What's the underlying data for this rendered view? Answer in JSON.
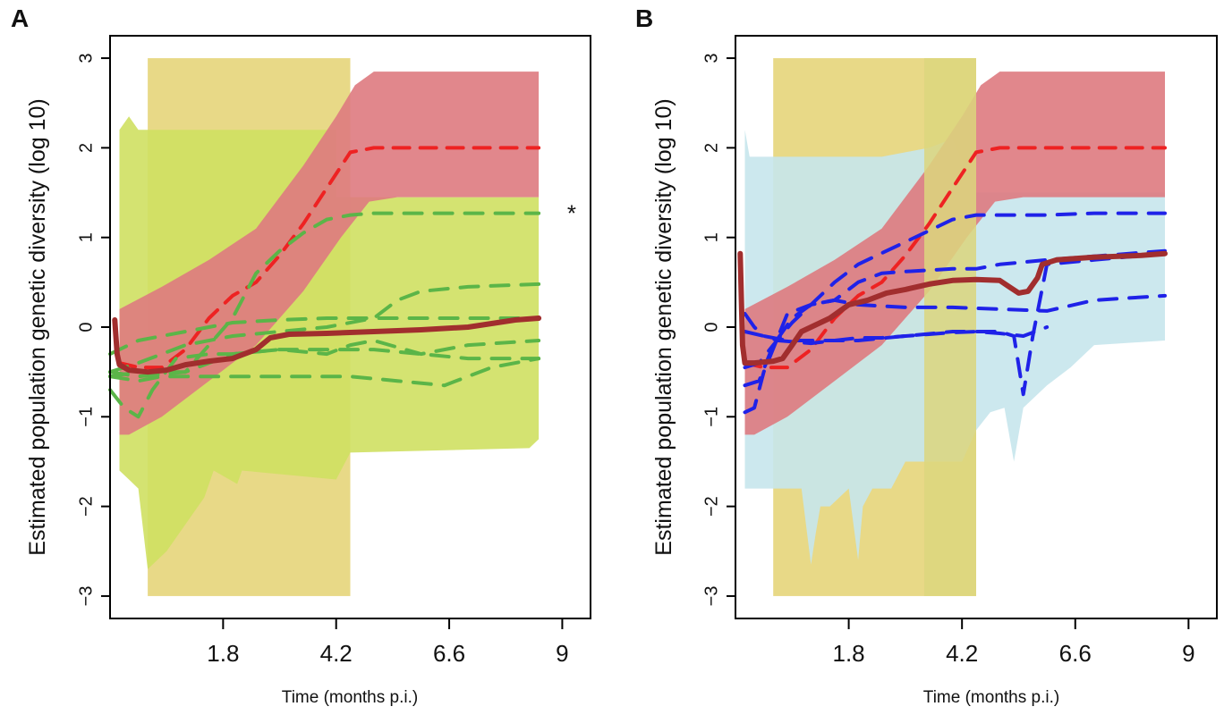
{
  "chart_data": [
    {
      "panel_label": "A",
      "type": "line",
      "xlabel": "Time (months p.i.)",
      "ylabel": "Estimated population genetic diversity (log 10)",
      "xlim": [
        -0.6,
        9.6
      ],
      "ylim": [
        -3.25,
        3.25
      ],
      "xticks": [
        "1.8",
        "4.2",
        "6.6",
        "9"
      ],
      "xtick_values": [
        1.8,
        4.2,
        6.6,
        9
      ],
      "yticks": [
        -3,
        -2,
        -1,
        0,
        1,
        2,
        3
      ],
      "grid": false,
      "colors": {
        "shade": "#e8d987",
        "band_red": "#de7a80",
        "band_second": "#cfe062",
        "median_red": "#ee2222",
        "others": "#5bb548",
        "mean": "#a12e2e"
      },
      "shaded_interval": {
        "x": [
          0.2,
          4.5
        ],
        "y": [
          -3,
          3
        ]
      },
      "annotation": {
        "text": "*",
        "x": 9.2,
        "y": 1.27
      },
      "second_band": {
        "upper": [
          [
            -0.4,
            2.2
          ],
          [
            -0.2,
            2.35
          ],
          [
            0.0,
            2.2
          ],
          [
            0.8,
            2.2
          ],
          [
            4.2,
            2.2
          ],
          [
            4.2,
            1.45
          ],
          [
            8.5,
            1.45
          ]
        ],
        "lower": [
          [
            8.5,
            -1.25
          ],
          [
            8.3,
            -1.35
          ],
          [
            4.5,
            -1.4
          ],
          [
            4.2,
            -1.7
          ],
          [
            2.2,
            -1.6
          ],
          [
            2.1,
            -1.75
          ],
          [
            1.6,
            -1.6
          ],
          [
            1.4,
            -1.9
          ],
          [
            0.6,
            -2.5
          ],
          [
            0.2,
            -2.7
          ],
          [
            0.0,
            -1.8
          ],
          [
            -0.2,
            -1.7
          ],
          [
            -0.4,
            -1.6
          ]
        ]
      },
      "red_band": {
        "upper": [
          [
            -0.4,
            0.2
          ],
          [
            0.5,
            0.45
          ],
          [
            1.5,
            0.75
          ],
          [
            2.5,
            1.1
          ],
          [
            3.5,
            1.8
          ],
          [
            4.2,
            2.35
          ],
          [
            4.6,
            2.7
          ],
          [
            5.0,
            2.85
          ],
          [
            8.5,
            2.85
          ]
        ],
        "lower": [
          [
            8.5,
            1.45
          ],
          [
            5.5,
            1.45
          ],
          [
            4.9,
            1.4
          ],
          [
            4.3,
            1.0
          ],
          [
            3.5,
            0.4
          ],
          [
            2.5,
            -0.2
          ],
          [
            1.5,
            -0.6
          ],
          [
            0.5,
            -1.0
          ],
          [
            -0.2,
            -1.2
          ],
          [
            -0.4,
            -1.2
          ]
        ]
      },
      "series": [
        {
          "role": "median_red",
          "dashed": true,
          "x": [
            -0.4,
            0.0,
            0.5,
            1.0,
            1.5,
            2.0,
            2.5,
            3.0,
            3.5,
            4.0,
            4.5,
            5.0,
            6.0,
            8.5
          ],
          "y": [
            -0.4,
            -0.45,
            -0.45,
            -0.25,
            0.1,
            0.35,
            0.5,
            0.8,
            1.15,
            1.55,
            1.95,
            2.0,
            2.0,
            2.0
          ]
        },
        {
          "role": "others",
          "dashed": true,
          "x": [
            -0.6,
            0.0,
            0.5,
            1.0,
            2.0,
            2.5,
            3.0,
            3.5,
            4.0,
            4.5,
            5.0,
            6.0,
            8.5
          ],
          "y": [
            -0.55,
            -0.5,
            -0.5,
            -0.5,
            0.1,
            0.6,
            0.85,
            1.05,
            1.2,
            1.25,
            1.27,
            1.27,
            1.27
          ]
        },
        {
          "role": "others",
          "dashed": true,
          "x": [
            -0.6,
            0.0,
            1.0,
            2.0,
            3.0,
            4.0,
            5.0,
            5.5,
            6.0,
            7.0,
            8.5
          ],
          "y": [
            -0.5,
            -0.4,
            -0.2,
            -0.1,
            -0.05,
            0.0,
            0.1,
            0.3,
            0.4,
            0.45,
            0.48
          ]
        },
        {
          "role": "others",
          "dashed": true,
          "x": [
            -0.6,
            0.0,
            1.0,
            2.0,
            3.0,
            4.0,
            5.0,
            6.0,
            7.0,
            8.5
          ],
          "y": [
            -0.3,
            -0.15,
            -0.05,
            0.05,
            0.08,
            0.1,
            0.1,
            0.1,
            0.1,
            0.1
          ]
        },
        {
          "role": "others",
          "dashed": true,
          "x": [
            -0.6,
            0.0,
            1.0,
            2.0,
            3.0,
            4.0,
            4.5,
            5.0,
            6.0,
            7.0,
            8.5
          ],
          "y": [
            -0.5,
            -0.55,
            -0.5,
            -0.3,
            -0.25,
            -0.3,
            -0.2,
            -0.15,
            -0.3,
            -0.2,
            -0.15
          ]
        },
        {
          "role": "others",
          "dashed": true,
          "x": [
            -0.6,
            0.0,
            0.5,
            1.5,
            2.5,
            3.5,
            4.5,
            5.5,
            6.5,
            7.5,
            8.5
          ],
          "y": [
            -0.55,
            -0.6,
            -0.55,
            -0.55,
            -0.55,
            -0.55,
            -0.55,
            -0.6,
            -0.65,
            -0.45,
            -0.35
          ]
        },
        {
          "role": "others",
          "dashed": true,
          "x": [
            -0.6,
            -0.3,
            0.0,
            0.3,
            0.8,
            1.5,
            2.0,
            3.0,
            4.0,
            5.0,
            6.0,
            7.0,
            8.5
          ],
          "y": [
            -0.7,
            -0.9,
            -1.0,
            -0.7,
            -0.35,
            -0.3,
            -0.3,
            -0.25,
            -0.25,
            -0.25,
            -0.3,
            -0.35,
            -0.35
          ]
        },
        {
          "role": "mean",
          "dashed": false,
          "x": [
            -0.5,
            -0.45,
            -0.4,
            -0.2,
            0.2,
            0.6,
            1.0,
            1.5,
            2.0,
            2.5,
            2.8,
            3.2,
            4.0,
            5.0,
            6.0,
            7.0,
            8.0,
            8.5
          ],
          "y": [
            0.08,
            -0.3,
            -0.42,
            -0.48,
            -0.5,
            -0.48,
            -0.42,
            -0.38,
            -0.35,
            -0.25,
            -0.12,
            -0.08,
            -0.07,
            -0.05,
            -0.03,
            0.0,
            0.08,
            0.1
          ]
        }
      ]
    },
    {
      "panel_label": "B",
      "type": "line",
      "xlabel": "Time (months p.i.)",
      "ylabel": "Estimated population genetic diversity (log 10)",
      "xlim": [
        -0.6,
        9.6
      ],
      "ylim": [
        -3.25,
        3.25
      ],
      "xticks": [
        "1.8",
        "4.2",
        "6.6",
        "9"
      ],
      "xtick_values": [
        1.8,
        4.2,
        6.6,
        9
      ],
      "yticks": [
        -3,
        -2,
        -1,
        0,
        1,
        2,
        3
      ],
      "grid": false,
      "colors": {
        "shade": "#e8d987",
        "shade_overlap": "#dcd67e",
        "band_red": "#de7a80",
        "band_second": "#c7e5ec",
        "median_red": "#ee2222",
        "others": "#1f22e8",
        "mean": "#a12e2e"
      },
      "shaded_interval": {
        "x": [
          0.2,
          4.5
        ],
        "y": [
          -3,
          3
        ]
      },
      "shaded_overlap": {
        "x": [
          3.4,
          4.5
        ],
        "y": [
          -3,
          3
        ]
      },
      "second_band": {
        "upper": [
          [
            -0.4,
            2.2
          ],
          [
            -0.3,
            1.9
          ],
          [
            0.5,
            1.9
          ],
          [
            1.5,
            1.9
          ],
          [
            2.5,
            1.9
          ],
          [
            3.5,
            2.0
          ],
          [
            4.0,
            2.1
          ],
          [
            4.5,
            1.5
          ],
          [
            8.5,
            1.5
          ]
        ],
        "lower": [
          [
            8.5,
            -0.15
          ],
          [
            7.0,
            -0.2
          ],
          [
            6.5,
            -0.45
          ],
          [
            6.0,
            -0.65
          ],
          [
            5.5,
            -0.9
          ],
          [
            5.3,
            -1.5
          ],
          [
            5.1,
            -0.9
          ],
          [
            4.8,
            -0.95
          ],
          [
            4.5,
            -1.15
          ],
          [
            4.2,
            -1.5
          ],
          [
            3.0,
            -1.5
          ],
          [
            2.7,
            -1.8
          ],
          [
            2.3,
            -1.8
          ],
          [
            2.1,
            -2.0
          ],
          [
            2.0,
            -2.6
          ],
          [
            1.8,
            -1.8
          ],
          [
            1.4,
            -2.0
          ],
          [
            1.2,
            -2.0
          ],
          [
            1.1,
            -2.3
          ],
          [
            1.0,
            -2.65
          ],
          [
            0.8,
            -1.8
          ],
          [
            -0.4,
            -1.8
          ]
        ]
      },
      "red_band": {
        "upper": [
          [
            -0.4,
            0.2
          ],
          [
            0.5,
            0.45
          ],
          [
            1.5,
            0.75
          ],
          [
            2.5,
            1.1
          ],
          [
            3.5,
            1.8
          ],
          [
            4.2,
            2.35
          ],
          [
            4.6,
            2.7
          ],
          [
            5.0,
            2.85
          ],
          [
            8.5,
            2.85
          ]
        ],
        "lower": [
          [
            8.5,
            1.45
          ],
          [
            5.5,
            1.45
          ],
          [
            4.9,
            1.4
          ],
          [
            4.3,
            1.0
          ],
          [
            3.5,
            0.4
          ],
          [
            2.5,
            -0.2
          ],
          [
            1.5,
            -0.6
          ],
          [
            0.5,
            -1.0
          ],
          [
            -0.2,
            -1.2
          ],
          [
            -0.4,
            -1.2
          ]
        ]
      },
      "series": [
        {
          "role": "median_red",
          "dashed": true,
          "x": [
            -0.4,
            0.0,
            0.5,
            1.0,
            1.5,
            2.0,
            2.5,
            3.0,
            3.5,
            4.0,
            4.5,
            5.0,
            6.0,
            8.5
          ],
          "y": [
            -0.4,
            -0.45,
            -0.45,
            -0.25,
            0.1,
            0.35,
            0.5,
            0.8,
            1.15,
            1.55,
            1.95,
            2.0,
            2.0,
            2.0
          ]
        },
        {
          "role": "others",
          "dashed": true,
          "x": [
            -0.4,
            -0.1,
            0.2,
            0.6,
            1.0,
            1.5,
            2.0,
            3.0,
            4.0,
            4.5,
            5.0,
            6.0,
            7.0,
            8.5
          ],
          "y": [
            -0.45,
            -0.4,
            -0.2,
            0.05,
            0.25,
            0.5,
            0.7,
            0.95,
            1.2,
            1.25,
            1.25,
            1.25,
            1.27,
            1.27
          ]
        },
        {
          "role": "others",
          "dashed": true,
          "x": [
            -0.4,
            -0.1,
            0.2,
            0.6,
            1.0,
            1.5,
            2.0,
            2.5,
            3.0,
            4.0,
            4.5,
            5.0,
            6.0,
            8.5
          ],
          "y": [
            -0.65,
            -0.6,
            -0.2,
            0.1,
            0.25,
            0.3,
            0.5,
            0.6,
            0.62,
            0.65,
            0.65,
            0.7,
            0.75,
            0.85
          ]
        },
        {
          "role": "others",
          "dashed": true,
          "x": [
            -0.4,
            -0.2,
            0.0,
            0.5,
            1.0,
            1.5,
            2.0,
            3.0,
            4.0,
            5.0,
            6.0,
            7.0,
            8.5
          ],
          "y": [
            -0.95,
            -0.9,
            -0.5,
            0.15,
            0.25,
            0.3,
            0.25,
            0.22,
            0.22,
            0.2,
            0.18,
            0.3,
            0.35
          ]
        },
        {
          "role": "others",
          "dashed": true,
          "x": [
            -0.4,
            -0.2,
            0.0,
            0.5,
            1.0,
            2.0,
            3.0,
            4.0,
            5.0,
            5.3,
            5.5,
            5.7,
            6.0,
            7.0,
            8.5
          ],
          "y": [
            0.15,
            0.0,
            -0.1,
            -0.15,
            -0.15,
            -0.15,
            -0.1,
            -0.05,
            -0.05,
            -0.1,
            -0.75,
            -0.1,
            0.7,
            0.75,
            0.82
          ]
        },
        {
          "role": "others",
          "dashed": true,
          "x": [
            -0.4,
            0.0,
            0.3,
            1.0,
            1.5,
            2.0,
            2.5,
            3.0,
            3.5,
            4.0,
            4.5,
            5.0,
            5.5,
            6.0
          ],
          "y": [
            -0.05,
            -0.1,
            -0.15,
            -0.18,
            -0.15,
            -0.12,
            -0.12,
            -0.1,
            -0.08,
            -0.06,
            -0.05,
            -0.07,
            -0.1,
            0.0
          ]
        },
        {
          "role": "mean",
          "dashed": false,
          "x": [
            -0.5,
            -0.45,
            -0.4,
            -0.2,
            0.2,
            0.4,
            0.6,
            0.8,
            1.0,
            1.4,
            1.8,
            2.2,
            2.6,
            3.0,
            3.5,
            4.0,
            4.5,
            5.0,
            5.2,
            5.4,
            5.6,
            5.8,
            5.9,
            6.2,
            7.0,
            8.0,
            8.5
          ],
          "y": [
            0.82,
            -0.2,
            -0.4,
            -0.4,
            -0.38,
            -0.35,
            -0.2,
            -0.05,
            0.0,
            0.1,
            0.25,
            0.3,
            0.38,
            0.42,
            0.48,
            0.52,
            0.53,
            0.52,
            0.45,
            0.38,
            0.4,
            0.55,
            0.7,
            0.75,
            0.78,
            0.8,
            0.82
          ]
        }
      ]
    }
  ]
}
